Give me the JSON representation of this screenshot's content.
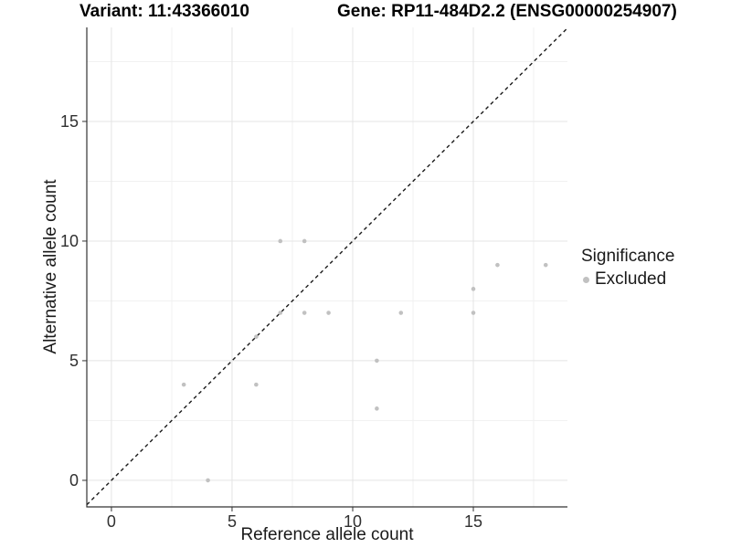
{
  "header": {
    "variant_title": "Variant: 11:43366010",
    "gene_title": "Gene: RP11-484D2.2 (ENSG00000254907)"
  },
  "axes": {
    "x_label": "Reference allele count",
    "y_label": "Alternative allele count"
  },
  "legend": {
    "title": "Significance",
    "items": [
      {
        "label": "Excluded",
        "color": "#c1c1c1"
      }
    ]
  },
  "colors": {
    "point": "#c1c1c1",
    "grid_major": "#e4e4e4",
    "grid_minor": "#f1f1f1",
    "axis_line": "#333333",
    "tick_text": "#303030",
    "identity_line": "#1a1a1a",
    "background": "#ffffff"
  },
  "chart_data": {
    "type": "scatter",
    "title": "Variant: 11:43366010 | Gene: RP11-484D2.2 (ENSG00000254907)",
    "xlabel": "Reference allele count",
    "ylabel": "Alternative allele count",
    "xlim": [
      -1.02,
      18.9
    ],
    "ylim": [
      -1.11,
      18.93
    ],
    "x_ticks": [
      0,
      5,
      10,
      15
    ],
    "y_ticks": [
      0,
      5,
      10,
      15
    ],
    "x_minor_gridlines": [
      2.5,
      7.5,
      12.5,
      17.5
    ],
    "y_minor_gridlines": [
      2.5,
      7.5,
      12.5,
      17.5
    ],
    "grid": true,
    "legend_position": "right",
    "identity_line": {
      "slope": 1,
      "intercept": 0,
      "style": "dashed"
    },
    "series": [
      {
        "name": "Excluded",
        "color": "#c1c1c1",
        "points": [
          [
            3,
            4
          ],
          [
            4,
            0
          ],
          [
            6,
            4
          ],
          [
            6,
            6
          ],
          [
            7,
            7
          ],
          [
            7,
            10
          ],
          [
            8,
            7
          ],
          [
            8,
            10
          ],
          [
            9,
            7
          ],
          [
            11,
            3
          ],
          [
            11,
            5
          ],
          [
            12,
            7
          ],
          [
            15,
            7
          ],
          [
            15,
            8
          ],
          [
            16,
            9
          ],
          [
            18,
            9
          ]
        ]
      }
    ]
  }
}
